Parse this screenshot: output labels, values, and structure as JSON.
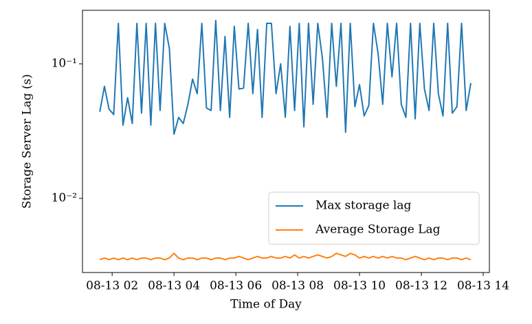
{
  "chart_data": {
    "type": "line",
    "xlabel": "Time of Day",
    "ylabel": "Storage Server Lag (s)",
    "log_y": true,
    "legend": "lower right",
    "xlim": [
      1.04,
      14.2
    ],
    "ylim": [
      0.00281,
      0.25
    ],
    "xticks": [
      {
        "value": 2,
        "label": "08-13 02"
      },
      {
        "value": 4,
        "label": "08-13 04"
      },
      {
        "value": 6,
        "label": "08-13 06"
      },
      {
        "value": 8,
        "label": "08-13 08"
      },
      {
        "value": 10,
        "label": "08-13 10"
      },
      {
        "value": 12,
        "label": "08-13 12"
      },
      {
        "value": 14,
        "label": "08-13 14"
      }
    ],
    "yticks": [
      {
        "value": 0.01,
        "label": "10⁻²"
      },
      {
        "value": 0.1,
        "label": "10⁻¹"
      }
    ],
    "x": [
      1.6,
      1.75,
      1.9,
      2.05,
      2.2,
      2.35,
      2.5,
      2.65,
      2.8,
      2.95,
      3.1,
      3.25,
      3.4,
      3.55,
      3.7,
      3.85,
      4.0,
      4.15,
      4.3,
      4.45,
      4.6,
      4.75,
      4.9,
      5.05,
      5.2,
      5.35,
      5.5,
      5.65,
      5.8,
      5.95,
      6.1,
      6.25,
      6.4,
      6.55,
      6.7,
      6.85,
      7.0,
      7.15,
      7.3,
      7.45,
      7.6,
      7.75,
      7.9,
      8.05,
      8.2,
      8.35,
      8.5,
      8.65,
      8.8,
      8.95,
      9.1,
      9.25,
      9.4,
      9.55,
      9.7,
      9.85,
      10.0,
      10.15,
      10.3,
      10.45,
      10.6,
      10.75,
      10.9,
      11.05,
      11.2,
      11.35,
      11.5,
      11.65,
      11.8,
      11.95,
      12.1,
      12.25,
      12.4,
      12.55,
      12.7,
      12.85,
      13.0,
      13.15,
      13.3,
      13.45,
      13.6
    ],
    "series": [
      {
        "name": "Max storage lag",
        "color": "#1f77b4",
        "values": [
          0.044,
          0.068,
          0.046,
          0.042,
          0.2,
          0.035,
          0.056,
          0.036,
          0.2,
          0.043,
          0.2,
          0.035,
          0.2,
          0.045,
          0.2,
          0.13,
          0.03,
          0.04,
          0.036,
          0.05,
          0.077,
          0.06,
          0.2,
          0.047,
          0.045,
          0.21,
          0.045,
          0.16,
          0.04,
          0.19,
          0.065,
          0.066,
          0.2,
          0.06,
          0.18,
          0.04,
          0.2,
          0.2,
          0.06,
          0.1,
          0.04,
          0.19,
          0.045,
          0.2,
          0.034,
          0.2,
          0.05,
          0.2,
          0.11,
          0.04,
          0.2,
          0.068,
          0.2,
          0.031,
          0.2,
          0.048,
          0.07,
          0.041,
          0.049,
          0.2,
          0.12,
          0.05,
          0.2,
          0.08,
          0.2,
          0.05,
          0.04,
          0.2,
          0.039,
          0.2,
          0.065,
          0.045,
          0.2,
          0.06,
          0.041,
          0.2,
          0.043,
          0.048,
          0.2,
          0.045,
          0.072
        ]
      },
      {
        "name": "Average Storage Lag",
        "color": "#ff7f0e",
        "values": [
          0.0035,
          0.0036,
          0.0035,
          0.0036,
          0.0035,
          0.0036,
          0.0035,
          0.0036,
          0.0035,
          0.0036,
          0.0036,
          0.0035,
          0.0036,
          0.0036,
          0.0035,
          0.0036,
          0.0039,
          0.0036,
          0.0035,
          0.0036,
          0.0036,
          0.0035,
          0.0036,
          0.0036,
          0.0035,
          0.0036,
          0.0036,
          0.0035,
          0.0036,
          0.0036,
          0.0037,
          0.0036,
          0.0035,
          0.0036,
          0.0037,
          0.0036,
          0.0036,
          0.0037,
          0.0036,
          0.0036,
          0.0037,
          0.0036,
          0.0038,
          0.0036,
          0.0037,
          0.0036,
          0.0037,
          0.0038,
          0.0037,
          0.0036,
          0.0037,
          0.0039,
          0.0038,
          0.0037,
          0.0039,
          0.0038,
          0.0036,
          0.0037,
          0.0036,
          0.0037,
          0.0036,
          0.0037,
          0.0036,
          0.0037,
          0.0036,
          0.0036,
          0.0035,
          0.0036,
          0.0037,
          0.0036,
          0.0035,
          0.0036,
          0.0035,
          0.0036,
          0.0036,
          0.0035,
          0.0036,
          0.0036,
          0.0035,
          0.0036,
          0.0035
        ]
      }
    ]
  }
}
